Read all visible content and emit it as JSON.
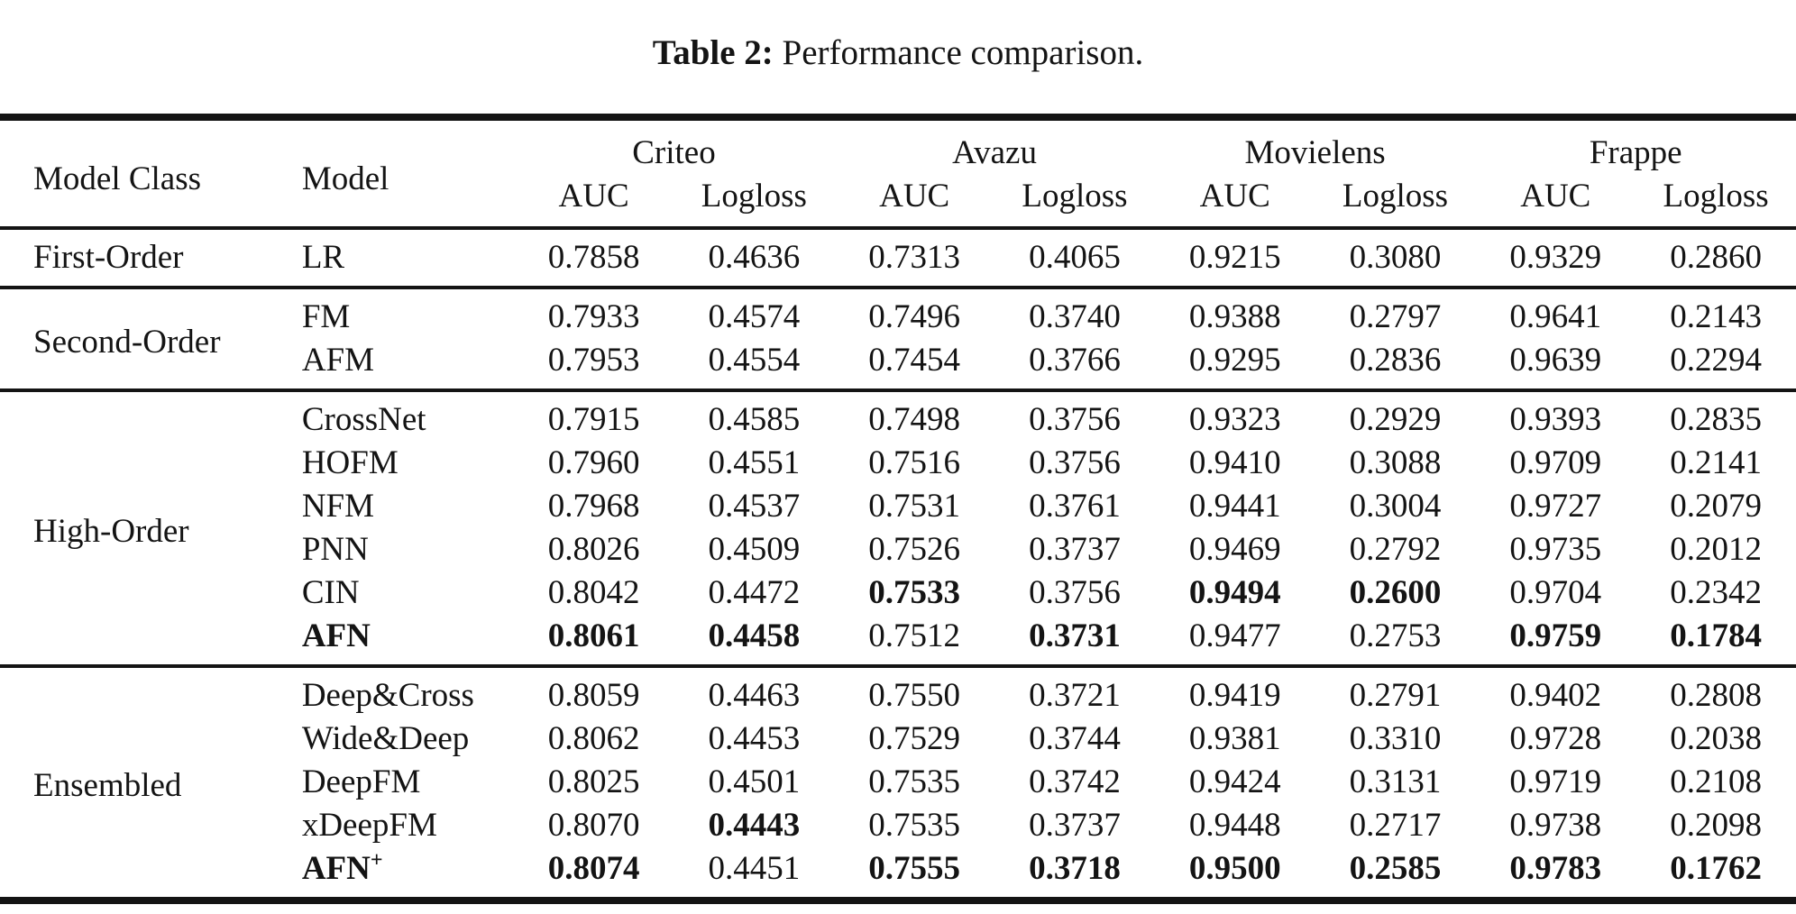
{
  "page": {
    "background_color": "#ffffff",
    "text_color": "#141414",
    "rule_color": "#141414"
  },
  "caption": {
    "label": "Table 2:",
    "text": "Performance comparison."
  },
  "header": {
    "model_class": "Model Class",
    "model": "Model",
    "datasets": [
      "Criteo",
      "Avazu",
      "Movielens",
      "Frappe"
    ],
    "metrics": [
      "AUC",
      "Logloss"
    ]
  },
  "chart_data": {
    "type": "table",
    "title": "Table 2: Performance comparison.",
    "columns": [
      "Model Class",
      "Model",
      "Criteo AUC",
      "Criteo Logloss",
      "Avazu AUC",
      "Avazu Logloss",
      "Movielens AUC",
      "Movielens Logloss",
      "Frappe AUC",
      "Frappe Logloss"
    ],
    "bold_meaning": "bold value = best result highlighted in the paper",
    "sections": [
      {
        "model_class": "First-Order",
        "rows": [
          {
            "model": "LR",
            "bold_model": false,
            "values": [
              "0.7858",
              "0.4636",
              "0.7313",
              "0.4065",
              "0.9215",
              "0.3080",
              "0.9329",
              "0.2860"
            ],
            "bold": [
              0,
              0,
              0,
              0,
              0,
              0,
              0,
              0
            ]
          }
        ]
      },
      {
        "model_class": "Second-Order",
        "rows": [
          {
            "model": "FM",
            "bold_model": false,
            "values": [
              "0.7933",
              "0.4574",
              "0.7496",
              "0.3740",
              "0.9388",
              "0.2797",
              "0.9641",
              "0.2143"
            ],
            "bold": [
              0,
              0,
              0,
              0,
              0,
              0,
              0,
              0
            ]
          },
          {
            "model": "AFM",
            "bold_model": false,
            "values": [
              "0.7953",
              "0.4554",
              "0.7454",
              "0.3766",
              "0.9295",
              "0.2836",
              "0.9639",
              "0.2294"
            ],
            "bold": [
              0,
              0,
              0,
              0,
              0,
              0,
              0,
              0
            ]
          }
        ]
      },
      {
        "model_class": "High-Order",
        "rows": [
          {
            "model": "CrossNet",
            "bold_model": false,
            "values": [
              "0.7915",
              "0.4585",
              "0.7498",
              "0.3756",
              "0.9323",
              "0.2929",
              "0.9393",
              "0.2835"
            ],
            "bold": [
              0,
              0,
              0,
              0,
              0,
              0,
              0,
              0
            ]
          },
          {
            "model": "HOFM",
            "bold_model": false,
            "values": [
              "0.7960",
              "0.4551",
              "0.7516",
              "0.3756",
              "0.9410",
              "0.3088",
              "0.9709",
              "0.2141"
            ],
            "bold": [
              0,
              0,
              0,
              0,
              0,
              0,
              0,
              0
            ]
          },
          {
            "model": "NFM",
            "bold_model": false,
            "values": [
              "0.7968",
              "0.4537",
              "0.7531",
              "0.3761",
              "0.9441",
              "0.3004",
              "0.9727",
              "0.2079"
            ],
            "bold": [
              0,
              0,
              0,
              0,
              0,
              0,
              0,
              0
            ]
          },
          {
            "model": "PNN",
            "bold_model": false,
            "values": [
              "0.8026",
              "0.4509",
              "0.7526",
              "0.3737",
              "0.9469",
              "0.2792",
              "0.9735",
              "0.2012"
            ],
            "bold": [
              0,
              0,
              0,
              0,
              0,
              0,
              0,
              0
            ]
          },
          {
            "model": "CIN",
            "bold_model": false,
            "values": [
              "0.8042",
              "0.4472",
              "0.7533",
              "0.3756",
              "0.9494",
              "0.2600",
              "0.9704",
              "0.2342"
            ],
            "bold": [
              0,
              0,
              1,
              0,
              1,
              1,
              0,
              0
            ]
          },
          {
            "model": "AFN",
            "bold_model": true,
            "values": [
              "0.8061",
              "0.4458",
              "0.7512",
              "0.3731",
              "0.9477",
              "0.2753",
              "0.9759",
              "0.1784"
            ],
            "bold": [
              1,
              1,
              0,
              1,
              0,
              0,
              1,
              1
            ]
          }
        ]
      },
      {
        "model_class": "Ensembled",
        "rows": [
          {
            "model": "Deep&Cross",
            "bold_model": false,
            "values": [
              "0.8059",
              "0.4463",
              "0.7550",
              "0.3721",
              "0.9419",
              "0.2791",
              "0.9402",
              "0.2808"
            ],
            "bold": [
              0,
              0,
              0,
              0,
              0,
              0,
              0,
              0
            ]
          },
          {
            "model": "Wide&Deep",
            "bold_model": false,
            "values": [
              "0.8062",
              "0.4453",
              "0.7529",
              "0.3744",
              "0.9381",
              "0.3310",
              "0.9728",
              "0.2038"
            ],
            "bold": [
              0,
              0,
              0,
              0,
              0,
              0,
              0,
              0
            ]
          },
          {
            "model": "DeepFM",
            "bold_model": false,
            "values": [
              "0.8025",
              "0.4501",
              "0.7535",
              "0.3742",
              "0.9424",
              "0.3131",
              "0.9719",
              "0.2108"
            ],
            "bold": [
              0,
              0,
              0,
              0,
              0,
              0,
              0,
              0
            ]
          },
          {
            "model": "xDeepFM",
            "bold_model": false,
            "values": [
              "0.8070",
              "0.4443",
              "0.7535",
              "0.3737",
              "0.9448",
              "0.2717",
              "0.9738",
              "0.2098"
            ],
            "bold": [
              0,
              1,
              0,
              0,
              0,
              0,
              0,
              0
            ]
          },
          {
            "model": "AFN",
            "model_sup": "+",
            "bold_model": true,
            "values": [
              "0.8074",
              "0.4451",
              "0.7555",
              "0.3718",
              "0.9500",
              "0.2585",
              "0.9783",
              "0.1762"
            ],
            "bold": [
              1,
              0,
              1,
              1,
              1,
              1,
              1,
              1
            ]
          }
        ]
      }
    ]
  }
}
